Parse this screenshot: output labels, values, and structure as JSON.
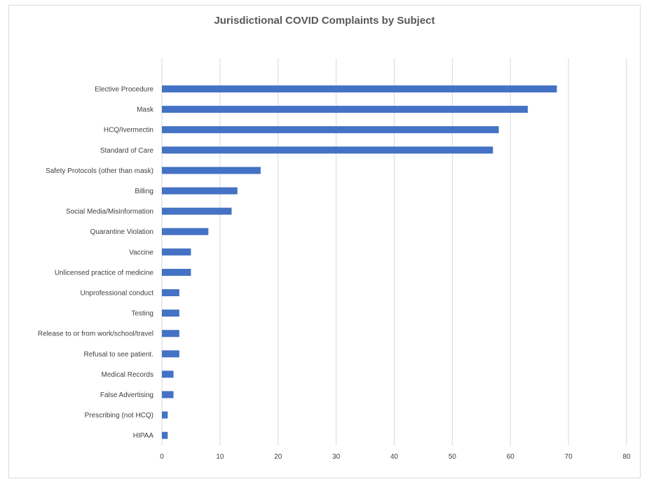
{
  "chart_data": {
    "type": "bar",
    "orientation": "horizontal",
    "title": "Jurisdictional COVID Complaints by Subject",
    "xlabel": "",
    "ylabel": "",
    "xlim": [
      0,
      80
    ],
    "x_ticks": [
      0,
      10,
      20,
      30,
      40,
      50,
      60,
      70,
      80
    ],
    "grid": true,
    "legend": "none",
    "color": "#4472c4",
    "categories": [
      "Elective Procedure",
      "Mask",
      "HCQ/Ivermectin",
      "Standard of Care",
      "Safety Protocols (other than mask)",
      "Billing",
      "Social Media/Misinformation",
      "Quarantine Violation",
      "Vaccine",
      "Unlicensed practice of medicine",
      "Unprofessional conduct",
      "Testing",
      "Release to or from work/school/travel",
      "Refusal to see patient.",
      "Medical Records",
      "False Advertising",
      "Prescribing (not HCQ)",
      "HIPAA"
    ],
    "values": [
      68,
      63,
      58,
      57,
      17,
      13,
      12,
      8,
      5,
      5,
      3,
      3,
      3,
      3,
      2,
      2,
      1,
      1
    ]
  }
}
